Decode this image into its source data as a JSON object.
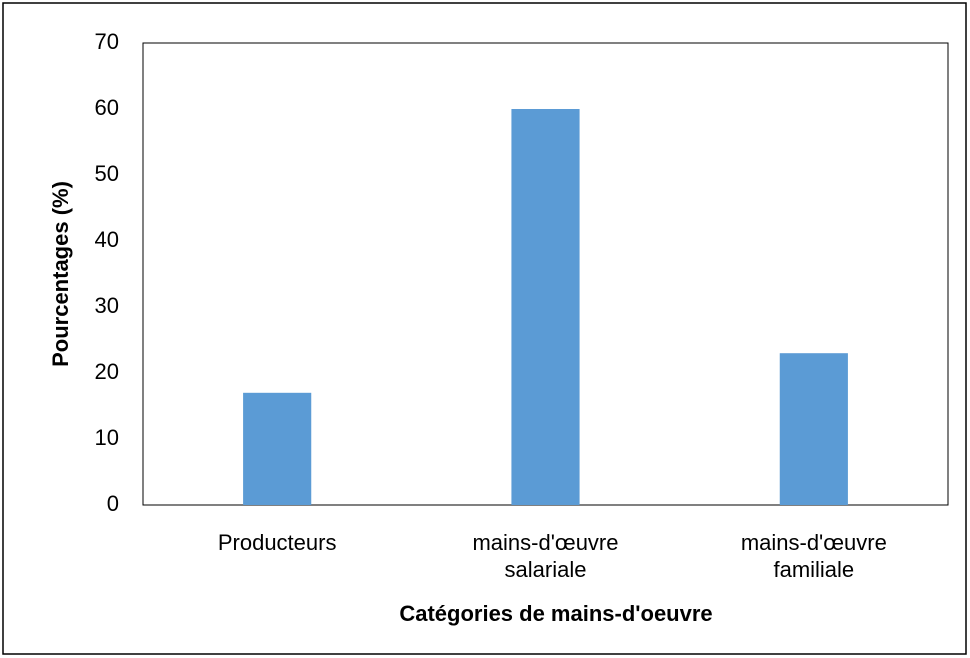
{
  "chart_data": {
    "type": "bar",
    "x_label": "Catégories de mains-d'oeuvre",
    "y_label": "Pourcentages (%)",
    "categories": [
      "Producteurs",
      "mains-d'œuvre salariale",
      "mains-d'œuvre familiale"
    ],
    "values": [
      17,
      60,
      23
    ],
    "color": "#5b9bd5",
    "ylim": [
      0,
      70
    ],
    "yticks": [
      0,
      10,
      20,
      30,
      40,
      50,
      60,
      70
    ],
    "grid": false
  }
}
